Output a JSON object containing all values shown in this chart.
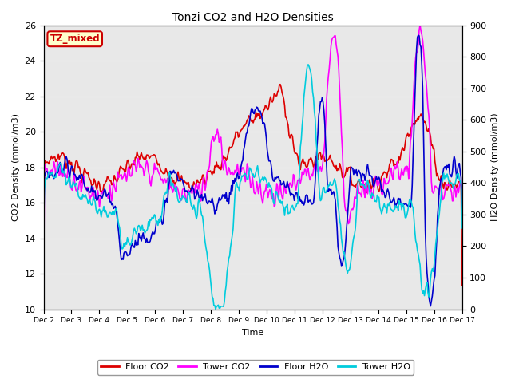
{
  "title": "Tonzi CO2 and H2O Densities",
  "xlabel": "Time",
  "ylabel_left": "CO2 Density (mmol/m3)",
  "ylabel_right": "H2O Density (mmol/m3)",
  "ylim_left": [
    10,
    26
  ],
  "ylim_right": [
    0,
    900
  ],
  "yticks_left": [
    10,
    12,
    14,
    16,
    18,
    20,
    22,
    24,
    26
  ],
  "yticks_right": [
    0,
    100,
    200,
    300,
    400,
    500,
    600,
    700,
    800,
    900
  ],
  "x_tick_labels": [
    "Dec 2",
    "Dec 3",
    "Dec 4",
    "Dec 5",
    "Dec 6",
    "Dec 7",
    "Dec 8",
    "Dec 9",
    "Dec 10",
    "Dec 11",
    "Dec 12",
    "Dec 13",
    "Dec 14",
    "Dec 15",
    "Dec 16",
    "Dec 17"
  ],
  "annotation_text": "TZ_mixed",
  "annotation_bg": "#ffffcc",
  "annotation_border": "#cc0000",
  "background_color": "#e8e8e8",
  "floor_co2_color": "#dd0000",
  "tower_co2_color": "#ff00ff",
  "floor_h2o_color": "#0000cc",
  "tower_h2o_color": "#00ccdd",
  "legend_labels": [
    "Floor CO2",
    "Tower CO2",
    "Floor H2O",
    "Tower H2O"
  ],
  "n_points": 480,
  "linewidth": 1.2
}
